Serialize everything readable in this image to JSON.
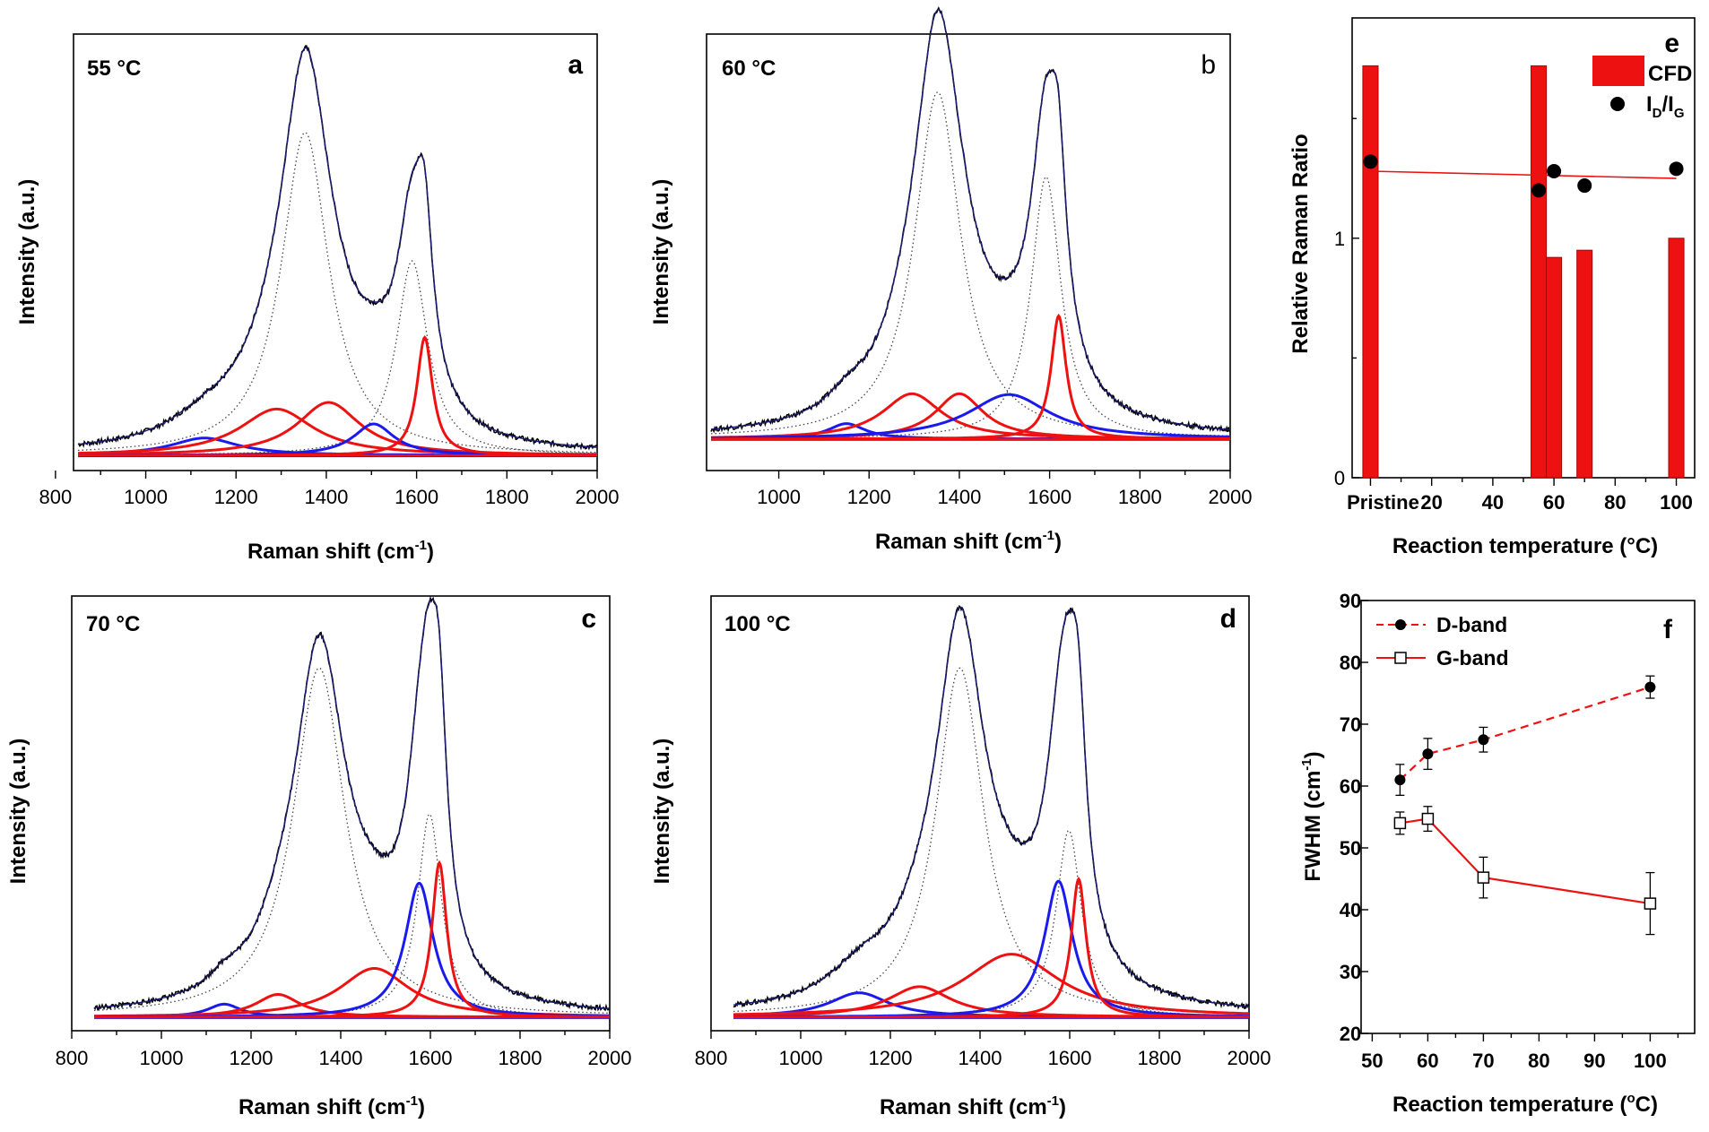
{
  "colors": {
    "red": "#ee1111",
    "blue": "#1a1aee",
    "navy": "#1c1c6e",
    "black": "#000000",
    "dotted": "#444444"
  },
  "raman_panels": [
    {
      "letter": "a",
      "temp_label": "55 °C",
      "x_ticks": [
        "800",
        "1000",
        "1200",
        "1400",
        "1600",
        "1800",
        "2000"
      ]
    },
    {
      "letter": "b",
      "temp_label": "60 °C",
      "x_ticks": [
        "1000",
        "1200",
        "1400",
        "1600",
        "1800",
        "2000"
      ]
    },
    {
      "letter": "c",
      "temp_label": "70 °C",
      "x_ticks": [
        "800",
        "1000",
        "1200",
        "1400",
        "1600",
        "1800",
        "2000"
      ]
    },
    {
      "letter": "d",
      "temp_label": "100 °C",
      "x_ticks": [
        "800",
        "1000",
        "1200",
        "1400",
        "1600",
        "1800",
        "2000"
      ]
    }
  ],
  "raman_labels": {
    "xlabel_main": "Raman shift (cm",
    "xlabel_sup": "-1",
    "xlabel_end": ")",
    "ylabel": "Intensity (a.u.)"
  },
  "panel_e": {
    "letter": "e",
    "ylabel": "Relative Raman Ratio",
    "xlabel": "Reaction temperature (°C)",
    "x_ticks": [
      "Pristine",
      "20",
      "40",
      "60",
      "80",
      "100"
    ],
    "y_ticks": [
      "0",
      "1"
    ],
    "legend_bar": "CFD",
    "legend_dot_main": "I",
    "legend_dot_sub1": "D",
    "legend_dot_slash": "/I",
    "legend_dot_sub2": "G"
  },
  "panel_f": {
    "letter": "f",
    "ylabel_main": "FWHM (cm",
    "ylabel_sup": "-1",
    "ylabel_end": ")",
    "xlabel_main": "Reaction temperature (",
    "xlabel_deg": "o",
    "xlabel_end": "C)",
    "x_ticks": [
      "50",
      "60",
      "70",
      "80",
      "90",
      "100"
    ],
    "y_ticks": [
      "20",
      "30",
      "40",
      "50",
      "60",
      "70",
      "80",
      "90"
    ],
    "legend_d": "D-band",
    "legend_g": "G-band"
  },
  "chart_data": [
    {
      "panel": "a",
      "type": "line",
      "title": "55 °C",
      "xlabel": "Raman shift (cm-1)",
      "ylabel": "Intensity (a.u.)",
      "xlim": [
        840,
        2000
      ],
      "ylim": [
        0,
        1
      ],
      "baseline": 0.03,
      "noise": 0.006,
      "overall_scale": 1.0,
      "peaks": [
        {
          "name": "D",
          "center": 1353,
          "width": 64,
          "height": 0.78,
          "fit_color": "dotted"
        },
        {
          "name": "G",
          "center": 1590,
          "width": 42,
          "height": 0.47,
          "fit_color": "dotted"
        },
        {
          "name": "band-1130",
          "center": 1130,
          "width": 90,
          "height": 0.042,
          "fit_color": "blue"
        },
        {
          "name": "band-1290",
          "center": 1290,
          "width": 100,
          "height": 0.112,
          "fit_color": "red"
        },
        {
          "name": "band-1400",
          "center": 1405,
          "width": 85,
          "height": 0.128,
          "fit_color": "red"
        },
        {
          "name": "band-1505",
          "center": 1505,
          "width": 55,
          "height": 0.076,
          "fit_color": "blue"
        },
        {
          "name": "band-1620",
          "center": 1618,
          "width": 21,
          "height": 0.285,
          "fit_color": "red"
        }
      ]
    },
    {
      "panel": "b",
      "type": "line",
      "title": "60 °C",
      "xlabel": "Raman shift (cm-1)",
      "ylabel": "Intensity (a.u.)",
      "xlim": [
        840,
        2000
      ],
      "ylim": [
        0,
        1
      ],
      "baseline": 0.045,
      "noise": 0.006,
      "overall_scale": 1.0,
      "peaks": [
        {
          "name": "D",
          "center": 1352,
          "width": 62,
          "height": 0.86,
          "fit_color": "dotted"
        },
        {
          "name": "G",
          "center": 1592,
          "width": 40,
          "height": 0.65,
          "fit_color": "dotted"
        },
        {
          "name": "band-1150",
          "center": 1150,
          "width": 50,
          "height": 0.038,
          "fit_color": "blue"
        },
        {
          "name": "band-1295",
          "center": 1295,
          "width": 80,
          "height": 0.112,
          "fit_color": "red"
        },
        {
          "name": "band-1400",
          "center": 1400,
          "width": 65,
          "height": 0.112,
          "fit_color": "red"
        },
        {
          "name": "band-1510",
          "center": 1510,
          "width": 110,
          "height": 0.11,
          "fit_color": "blue"
        },
        {
          "name": "band-1620",
          "center": 1620,
          "width": 20,
          "height": 0.305,
          "fit_color": "red"
        }
      ]
    },
    {
      "panel": "c",
      "type": "line",
      "title": "70 °C",
      "xlabel": "Raman shift (cm-1)",
      "ylabel": "Intensity (a.u.)",
      "xlim": [
        800,
        2000
      ],
      "ylim": [
        0,
        1
      ],
      "baseline": 0.018,
      "noise": 0.006,
      "overall_scale": 1.0,
      "peaks": [
        {
          "name": "D",
          "center": 1352,
          "width": 70,
          "height": 0.86,
          "fit_color": "dotted"
        },
        {
          "name": "G",
          "center": 1598,
          "width": 32,
          "height": 0.5,
          "fit_color": "dotted"
        },
        {
          "name": "band-1140",
          "center": 1140,
          "width": 45,
          "height": 0.032,
          "fit_color": "blue"
        },
        {
          "name": "band-1260",
          "center": 1260,
          "width": 60,
          "height": 0.056,
          "fit_color": "red"
        },
        {
          "name": "band-1475",
          "center": 1475,
          "width": 95,
          "height": 0.12,
          "fit_color": "red"
        },
        {
          "name": "band-1575",
          "center": 1575,
          "width": 38,
          "height": 0.33,
          "fit_color": "blue"
        },
        {
          "name": "band-1620",
          "center": 1620,
          "width": 20,
          "height": 0.38,
          "fit_color": "red"
        }
      ]
    },
    {
      "panel": "d",
      "type": "line",
      "title": "100 °C",
      "xlabel": "Raman shift (cm-1)",
      "ylabel": "Intensity (a.u.)",
      "xlim": [
        800,
        2000
      ],
      "ylim": [
        0,
        1
      ],
      "baseline": 0.018,
      "noise": 0.006,
      "overall_scale": 1.0,
      "peaks": [
        {
          "name": "D",
          "center": 1355,
          "width": 65,
          "height": 0.86,
          "fit_color": "dotted"
        },
        {
          "name": "G",
          "center": 1598,
          "width": 34,
          "height": 0.46,
          "fit_color": "dotted"
        },
        {
          "name": "band-1130",
          "center": 1130,
          "width": 80,
          "height": 0.06,
          "fit_color": "blue"
        },
        {
          "name": "band-1265",
          "center": 1265,
          "width": 85,
          "height": 0.075,
          "fit_color": "red"
        },
        {
          "name": "band-1470",
          "center": 1470,
          "width": 130,
          "height": 0.155,
          "fit_color": "red"
        },
        {
          "name": "band-1575",
          "center": 1575,
          "width": 38,
          "height": 0.335,
          "fit_color": "blue"
        },
        {
          "name": "band-1620",
          "center": 1620,
          "width": 20,
          "height": 0.34,
          "fit_color": "red"
        }
      ]
    },
    {
      "panel": "e",
      "type": "bar",
      "title": "",
      "xlabel": "Reaction temperature (°C)",
      "ylabel": "Relative Raman Ratio",
      "xlim": [
        -6,
        106
      ],
      "ylim": [
        0,
        1.92
      ],
      "x_tick_positions": [
        0,
        20,
        40,
        60,
        80,
        100
      ],
      "series": [
        {
          "name": "CFD",
          "kind": "bar",
          "bar_width": 5,
          "points": [
            {
              "x": 0,
              "y": 1.72
            },
            {
              "x": 55,
              "y": 1.72
            },
            {
              "x": 60,
              "y": 0.92
            },
            {
              "x": 70,
              "y": 0.95
            },
            {
              "x": 100,
              "y": 1.0
            }
          ]
        },
        {
          "name": "ID/IG",
          "kind": "scatter",
          "points": [
            {
              "x": 0,
              "y": 1.32
            },
            {
              "x": 55,
              "y": 1.2
            },
            {
              "x": 60,
              "y": 1.28
            },
            {
              "x": 70,
              "y": 1.22
            },
            {
              "x": 100,
              "y": 1.29
            }
          ]
        }
      ],
      "trend_line": [
        {
          "x": 0,
          "y": 1.28
        },
        {
          "x": 100,
          "y": 1.25
        }
      ]
    },
    {
      "panel": "f",
      "type": "line",
      "title": "",
      "xlabel": "Reaction temperature (oC)",
      "ylabel": "FWHM (cm-1)",
      "xlim": [
        48,
        108
      ],
      "ylim": [
        20,
        90
      ],
      "series": [
        {
          "name": "D-band",
          "style": "dashed",
          "marker": "filled-circle",
          "x": [
            55,
            60,
            70,
            100
          ],
          "y": [
            61,
            65.2,
            67.5,
            76
          ],
          "err": [
            2.5,
            2.5,
            2,
            1.8
          ]
        },
        {
          "name": "G-band",
          "style": "solid",
          "marker": "open-square",
          "x": [
            55,
            60,
            70,
            100
          ],
          "y": [
            54,
            54.7,
            45.2,
            41
          ],
          "err": [
            1.8,
            2,
            3.3,
            5
          ]
        }
      ]
    }
  ]
}
